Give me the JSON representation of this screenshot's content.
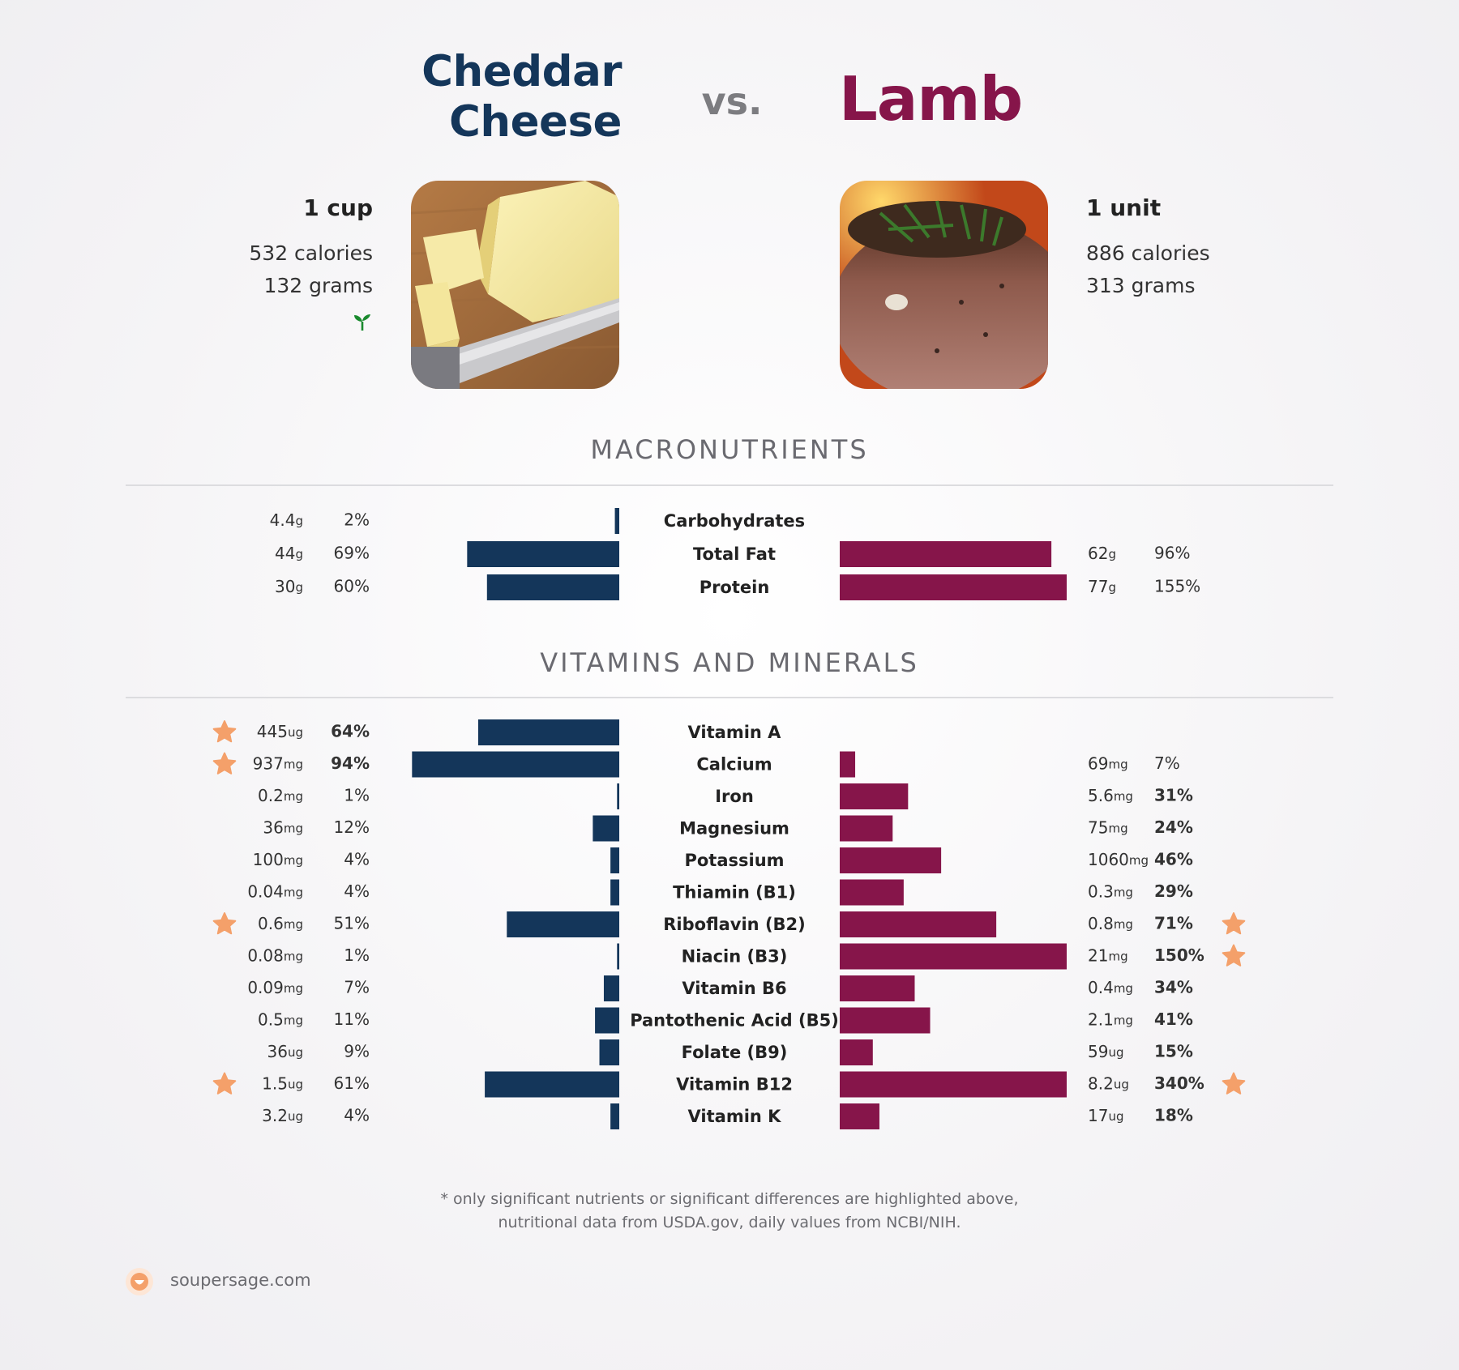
{
  "header": {
    "left_title_line1": "Cheddar",
    "left_title_line2": "Cheese",
    "vs": "vs.",
    "right_title": "Lamb"
  },
  "foods": {
    "left": {
      "portion": "1 cup",
      "calories": "532 calories",
      "grams": "132 grams",
      "icon": "sprout-icon"
    },
    "right": {
      "portion": "1 unit",
      "calories": "886 calories",
      "grams": "313 grams"
    }
  },
  "colors": {
    "left_bar": "#14365a",
    "right_bar": "#86154a",
    "star": "#f4a06a"
  },
  "chart_data": [
    {
      "type": "bar",
      "title": "MACRONUTRIENTS",
      "series": [
        {
          "name": "Cheddar Cheese",
          "side": "left"
        },
        {
          "name": "Lamb",
          "side": "right"
        }
      ],
      "rows": [
        {
          "label": "Carbohydrates",
          "left": {
            "amount": "4.4",
            "unit": "g",
            "pct": 2,
            "pct_text": "2%",
            "bold": false,
            "star": false
          },
          "right": null
        },
        {
          "label": "Total Fat",
          "left": {
            "amount": "44",
            "unit": "g",
            "pct": 69,
            "pct_text": "69%",
            "bold": false,
            "star": false
          },
          "right": {
            "amount": "62",
            "unit": "g",
            "pct": 96,
            "pct_text": "96%",
            "bold": false,
            "star": false
          }
        },
        {
          "label": "Protein",
          "left": {
            "amount": "30",
            "unit": "g",
            "pct": 60,
            "pct_text": "60%",
            "bold": false,
            "star": false
          },
          "right": {
            "amount": "77",
            "unit": "g",
            "pct": 155,
            "pct_text": "155%",
            "bold": false,
            "star": false
          }
        }
      ]
    },
    {
      "type": "bar",
      "title": "VITAMINS AND MINERALS",
      "series": [
        {
          "name": "Cheddar Cheese",
          "side": "left"
        },
        {
          "name": "Lamb",
          "side": "right"
        }
      ],
      "rows": [
        {
          "label": "Vitamin A",
          "left": {
            "amount": "445",
            "unit": "ug",
            "pct": 64,
            "pct_text": "64%",
            "bold": true,
            "star": true
          },
          "right": null
        },
        {
          "label": "Calcium",
          "left": {
            "amount": "937",
            "unit": "mg",
            "pct": 94,
            "pct_text": "94%",
            "bold": true,
            "star": true
          },
          "right": {
            "amount": "69",
            "unit": "mg",
            "pct": 7,
            "pct_text": "7%",
            "bold": false,
            "star": false
          }
        },
        {
          "label": "Iron",
          "left": {
            "amount": "0.2",
            "unit": "mg",
            "pct": 1,
            "pct_text": "1%",
            "bold": false,
            "star": false
          },
          "right": {
            "amount": "5.6",
            "unit": "mg",
            "pct": 31,
            "pct_text": "31%",
            "bold": true,
            "star": false
          }
        },
        {
          "label": "Magnesium",
          "left": {
            "amount": "36",
            "unit": "mg",
            "pct": 12,
            "pct_text": "12%",
            "bold": false,
            "star": false
          },
          "right": {
            "amount": "75",
            "unit": "mg",
            "pct": 24,
            "pct_text": "24%",
            "bold": true,
            "star": false
          }
        },
        {
          "label": "Potassium",
          "left": {
            "amount": "100",
            "unit": "mg",
            "pct": 4,
            "pct_text": "4%",
            "bold": false,
            "star": false
          },
          "right": {
            "amount": "1060",
            "unit": "mg",
            "pct": 46,
            "pct_text": "46%",
            "bold": true,
            "star": false
          }
        },
        {
          "label": "Thiamin (B1)",
          "left": {
            "amount": "0.04",
            "unit": "mg",
            "pct": 4,
            "pct_text": "4%",
            "bold": false,
            "star": false
          },
          "right": {
            "amount": "0.3",
            "unit": "mg",
            "pct": 29,
            "pct_text": "29%",
            "bold": true,
            "star": false
          }
        },
        {
          "label": "Riboflavin (B2)",
          "left": {
            "amount": "0.6",
            "unit": "mg",
            "pct": 51,
            "pct_text": "51%",
            "bold": false,
            "star": true
          },
          "right": {
            "amount": "0.8",
            "unit": "mg",
            "pct": 71,
            "pct_text": "71%",
            "bold": true,
            "star": true
          }
        },
        {
          "label": "Niacin (B3)",
          "left": {
            "amount": "0.08",
            "unit": "mg",
            "pct": 1,
            "pct_text": "1%",
            "bold": false,
            "star": false
          },
          "right": {
            "amount": "21",
            "unit": "mg",
            "pct": 150,
            "pct_text": "150%",
            "bold": true,
            "star": true
          }
        },
        {
          "label": "Vitamin B6",
          "left": {
            "amount": "0.09",
            "unit": "mg",
            "pct": 7,
            "pct_text": "7%",
            "bold": false,
            "star": false
          },
          "right": {
            "amount": "0.4",
            "unit": "mg",
            "pct": 34,
            "pct_text": "34%",
            "bold": true,
            "star": false
          }
        },
        {
          "label": "Pantothenic Acid (B5)",
          "left": {
            "amount": "0.5",
            "unit": "mg",
            "pct": 11,
            "pct_text": "11%",
            "bold": false,
            "star": false
          },
          "right": {
            "amount": "2.1",
            "unit": "mg",
            "pct": 41,
            "pct_text": "41%",
            "bold": true,
            "star": false
          }
        },
        {
          "label": "Folate (B9)",
          "left": {
            "amount": "36",
            "unit": "ug",
            "pct": 9,
            "pct_text": "9%",
            "bold": false,
            "star": false
          },
          "right": {
            "amount": "59",
            "unit": "ug",
            "pct": 15,
            "pct_text": "15%",
            "bold": true,
            "star": false
          }
        },
        {
          "label": "Vitamin B12",
          "left": {
            "amount": "1.5",
            "unit": "ug",
            "pct": 61,
            "pct_text": "61%",
            "bold": false,
            "star": true
          },
          "right": {
            "amount": "8.2",
            "unit": "ug",
            "pct": 340,
            "pct_text": "340%",
            "bold": true,
            "star": true
          }
        },
        {
          "label": "Vitamin K",
          "left": {
            "amount": "3.2",
            "unit": "ug",
            "pct": 4,
            "pct_text": "4%",
            "bold": false,
            "star": false
          },
          "right": {
            "amount": "17",
            "unit": "ug",
            "pct": 18,
            "pct_text": "18%",
            "bold": true,
            "star": false
          }
        }
      ]
    }
  ],
  "footnote": {
    "line1": "* only significant nutrients or significant differences are highlighted above,",
    "line2": "nutritional data from USDA.gov, daily values from NCBI/NIH."
  },
  "brand": {
    "text": "soupersage.com",
    "icon": "soupersage-logo-icon"
  }
}
